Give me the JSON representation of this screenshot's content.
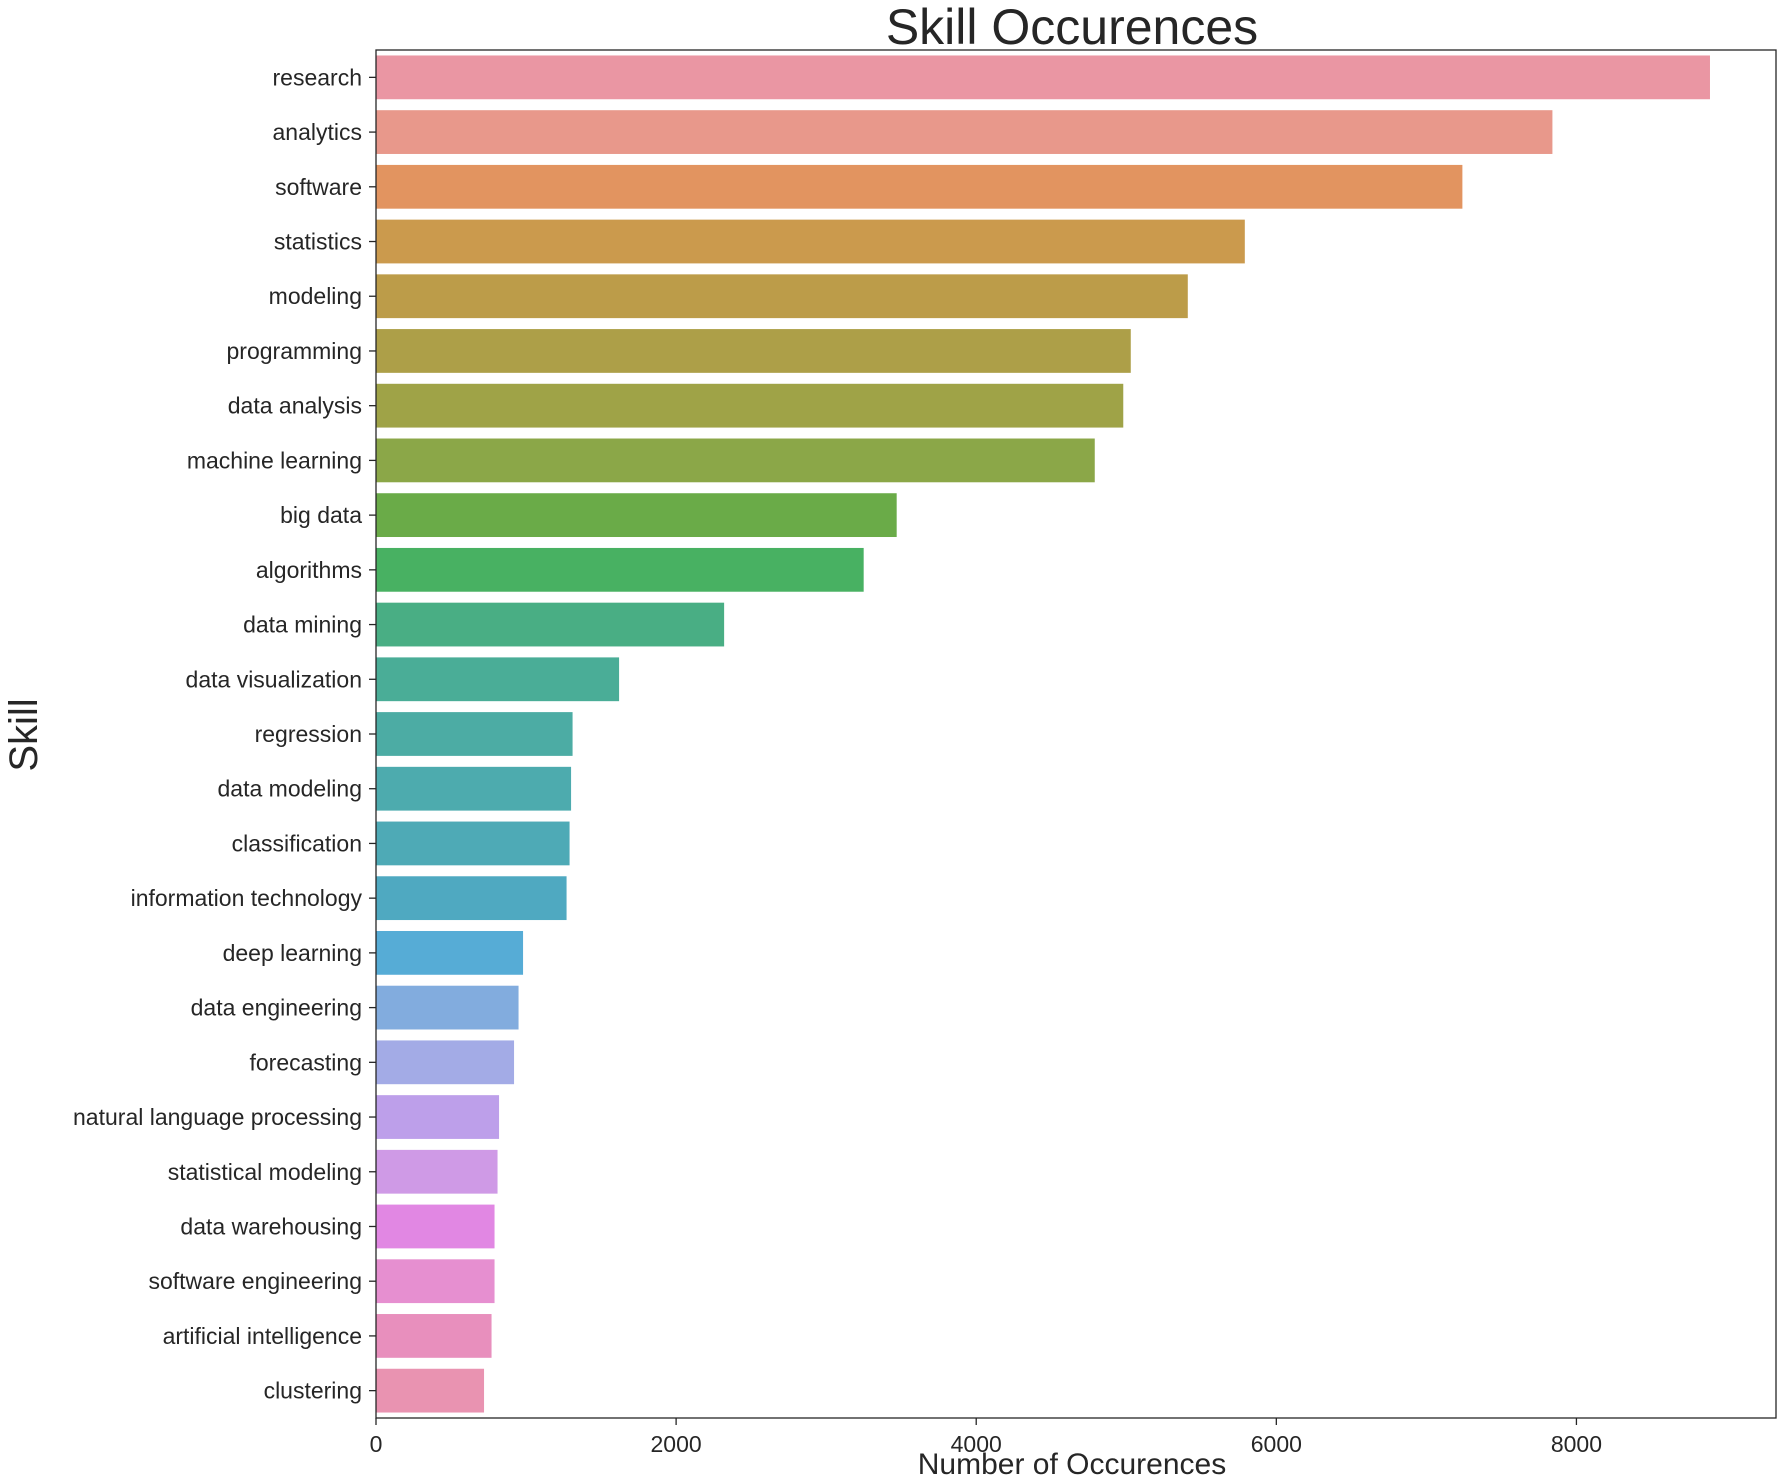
{
  "chart_data": {
    "type": "bar",
    "orientation": "horizontal",
    "title": "Skill Occurences",
    "xlabel": "Number of Occurences",
    "ylabel": "Skill",
    "xlim": [
      0,
      9330
    ],
    "xticks": [
      0,
      2000,
      4000,
      6000,
      8000
    ],
    "grid": false,
    "categories": [
      "research",
      "analytics",
      "software",
      "statistics",
      "modeling",
      "programming",
      "data analysis",
      "machine learning",
      "big data",
      "algorithms",
      "data mining",
      "data visualization",
      "regression",
      "data modeling",
      "classification",
      "information technology",
      "deep learning",
      "data engineering",
      "forecasting",
      "natural language processing",
      "statistical modeling",
      "data warehousing",
      "software engineering",
      "artificial intelligence",
      "clustering"
    ],
    "values": [
      8890,
      7840,
      7240,
      5790,
      5410,
      5030,
      4980,
      4790,
      3470,
      3250,
      2320,
      1620,
      1310,
      1300,
      1290,
      1270,
      980,
      950,
      920,
      820,
      810,
      790,
      790,
      770,
      720
    ],
    "colors": [
      "#ea96a3",
      "#e8988b",
      "#e29460",
      "#cb9a4d",
      "#bc9c49",
      "#ad9f48",
      "#9fa347",
      "#8ba748",
      "#6aab48",
      "#48b162",
      "#49ae84",
      "#4aad97",
      "#4caca4",
      "#4dabae",
      "#4eaab6",
      "#4fa9c1",
      "#56acd6",
      "#82acde",
      "#a3abe6",
      "#bd9fea",
      "#cf9ae6",
      "#e187e3",
      "#e68fd0",
      "#e88fbd",
      "#e993b1"
    ]
  }
}
